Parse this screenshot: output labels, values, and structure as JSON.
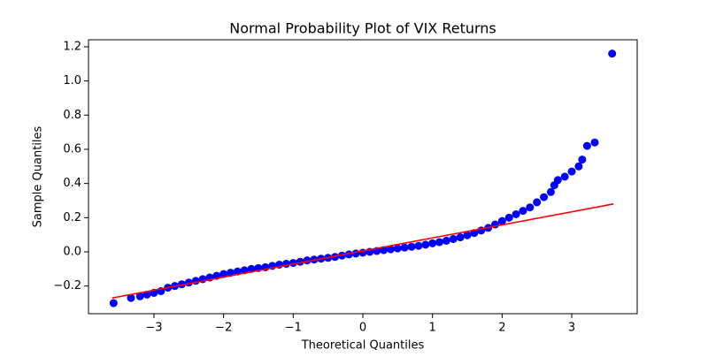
{
  "chart_data": {
    "type": "scatter",
    "title": "Normal Probability Plot of VIX Returns",
    "x_label": "Theoretical Quantiles",
    "y_label": "Sample Quantiles",
    "xlim": [
      -3.94,
      3.94
    ],
    "ylim": [
      -0.362,
      1.241
    ],
    "xticks": [
      {
        "value": -3,
        "label": "−3"
      },
      {
        "value": -2,
        "label": "−2"
      },
      {
        "value": -1,
        "label": "−1"
      },
      0,
      1,
      2,
      3
    ],
    "yticks": [
      {
        "value": -0.2,
        "label": "−0.2"
      },
      {
        "value": 0,
        "label": "0.0"
      },
      0.2,
      0.4,
      0.6,
      0.8,
      {
        "value": 1,
        "label": "1.0"
      },
      1.2
    ],
    "grid": false,
    "points": {
      "color": "#0000ff",
      "x": [
        -3.58,
        -3.33,
        -3.2,
        -3.1,
        -3.0,
        -2.9,
        -2.8,
        -2.7,
        -2.6,
        -2.5,
        -2.4,
        -2.3,
        -2.2,
        -2.1,
        -2.0,
        -1.9,
        -1.8,
        -1.7,
        -1.6,
        -1.5,
        -1.4,
        -1.3,
        -1.2,
        -1.1,
        -1.0,
        -0.9,
        -0.8,
        -0.7,
        -0.6,
        -0.5,
        -0.4,
        -0.3,
        -0.2,
        -0.1,
        0,
        0.1,
        0.2,
        0.3,
        0.4,
        0.5,
        0.6,
        0.7,
        0.8,
        0.9,
        1.0,
        1.1,
        1.2,
        1.3,
        1.4,
        1.5,
        1.6,
        1.7,
        1.8,
        1.9,
        2.0,
        2.1,
        2.2,
        2.3,
        2.4,
        2.5,
        2.6,
        2.7,
        2.75,
        2.8,
        2.9,
        3.0,
        3.1,
        3.15,
        3.22,
        3.33,
        3.58
      ],
      "y": [
        -0.3,
        -0.27,
        -0.26,
        -0.25,
        -0.24,
        -0.23,
        -0.21,
        -0.2,
        -0.19,
        -0.18,
        -0.17,
        -0.16,
        -0.15,
        -0.14,
        -0.13,
        -0.122,
        -0.115,
        -0.108,
        -0.1,
        -0.095,
        -0.09,
        -0.082,
        -0.075,
        -0.07,
        -0.065,
        -0.058,
        -0.05,
        -0.045,
        -0.04,
        -0.035,
        -0.03,
        -0.022,
        -0.015,
        -0.01,
        -0.005,
        0,
        0.005,
        0.01,
        0.015,
        0.02,
        0.025,
        0.03,
        0.035,
        0.042,
        0.05,
        0.057,
        0.065,
        0.075,
        0.085,
        0.097,
        0.11,
        0.125,
        0.14,
        0.16,
        0.18,
        0.2,
        0.22,
        0.24,
        0.26,
        0.29,
        0.32,
        0.35,
        0.39,
        0.42,
        0.44,
        0.47,
        0.5,
        0.54,
        0.62,
        0.64,
        1.16
      ]
    },
    "fit_line": {
      "color": "#ff0000",
      "x": [
        -3.6,
        3.6
      ],
      "y": [
        -0.27,
        0.28
      ]
    }
  }
}
